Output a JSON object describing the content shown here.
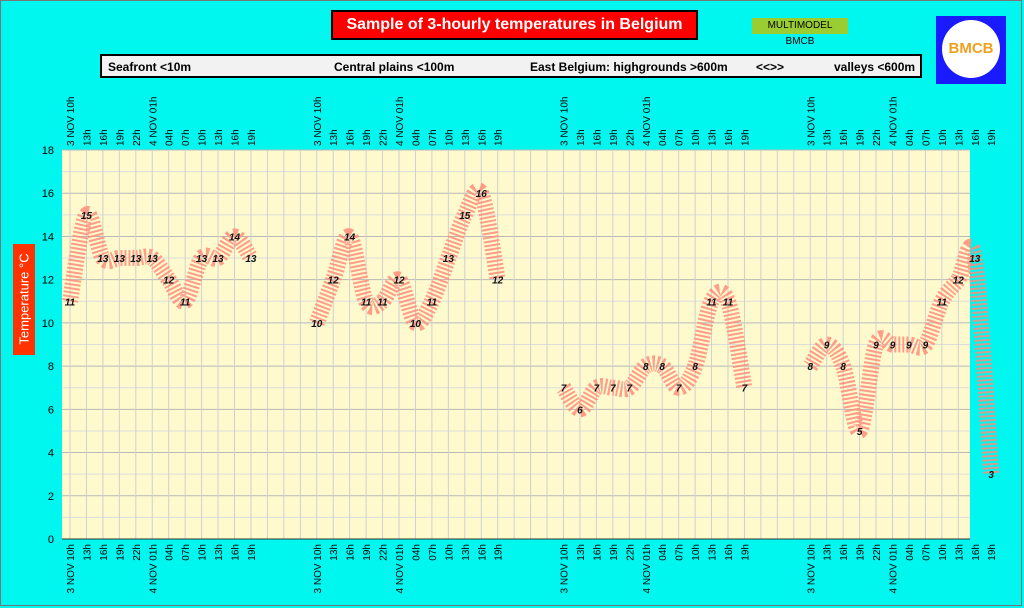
{
  "title": "Sample of 3-hourly temperatures in Belgium",
  "badge": "MULTIMODEL BMCB",
  "logo_text": "BMCB",
  "regions": [
    "Seafront <10m",
    "Central plains <100m",
    "East Belgium: highgrounds >600m",
    "<<>>",
    "valleys <600m"
  ],
  "y_axis_label": "Temperature   °C",
  "colors": {
    "background": "#00f7ef",
    "plot": "#fffacd",
    "band": "#ff8c7a",
    "title_bg": "#ff0000"
  },
  "chart_data": {
    "type": "line",
    "ylim": [
      0,
      18
    ],
    "y_ticks": [
      0,
      2,
      4,
      6,
      8,
      10,
      12,
      14,
      16,
      18
    ],
    "grid": true,
    "categories": [
      "3 NOV 10h",
      "13h",
      "16h",
      "19h",
      "22h",
      "4 NOV 01h",
      "04h",
      "07h",
      "10h",
      "13h",
      "16h",
      "19h"
    ],
    "series": [
      {
        "values": [
          11,
          15,
          13,
          13,
          13,
          13,
          12,
          11,
          13,
          13,
          14,
          13
        ]
      },
      {
        "values": [
          10,
          12,
          14,
          11,
          11,
          12,
          10,
          11,
          13,
          15,
          16,
          12
        ]
      },
      {
        "values": [
          7,
          6,
          7,
          7,
          7,
          8,
          8,
          7,
          8,
          11,
          11,
          7
        ]
      },
      {
        "values": [
          8,
          9,
          8,
          5,
          9,
          9,
          9,
          9,
          11,
          12,
          13,
          3
        ]
      }
    ]
  }
}
